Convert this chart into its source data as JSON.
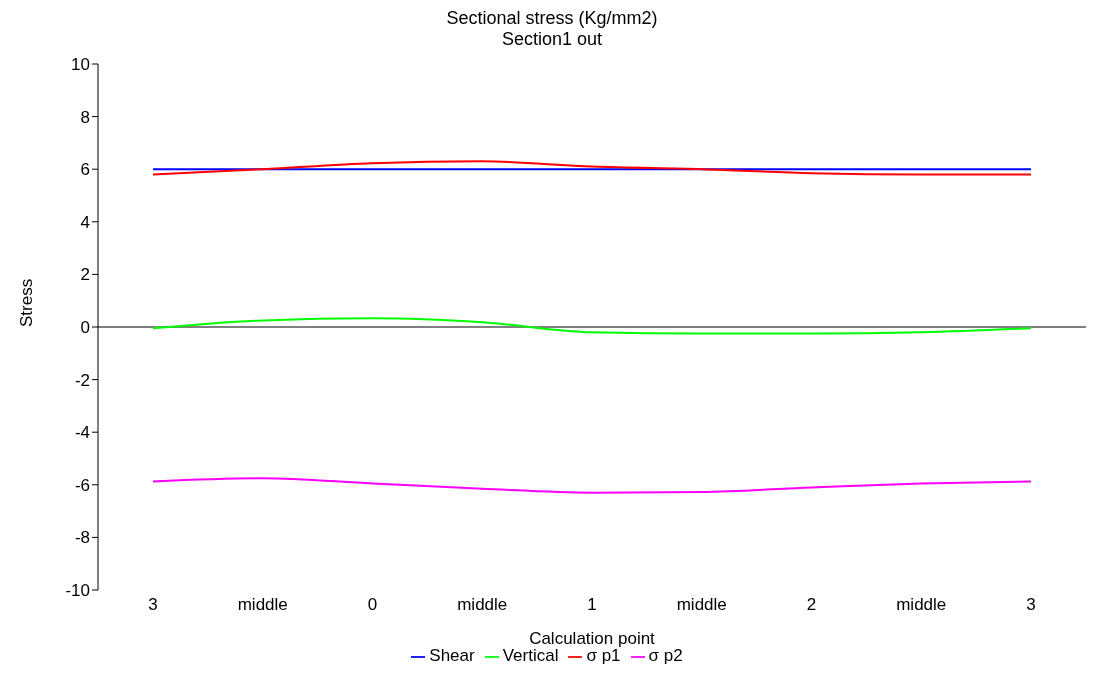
{
  "chart_data": {
    "type": "line",
    "title": "Sectional stress (Kg/mm2)",
    "subtitle": "Section1 out",
    "xlabel": "Calculation point",
    "ylabel": "Stress",
    "categories": [
      "3",
      "middle",
      "0",
      "middle",
      "1",
      "middle",
      "2",
      "middle",
      "3"
    ],
    "series": [
      {
        "name": "Shear",
        "color": "#0000ff",
        "values": [
          6,
          6,
          6,
          6,
          6,
          6,
          6,
          6,
          6
        ]
      },
      {
        "name": "Vertical",
        "color": "#00ff00",
        "values": [
          -0.05,
          0.25,
          0.33,
          0.18,
          -0.2,
          -0.25,
          -0.25,
          -0.2,
          -0.05
        ]
      },
      {
        "name": "σ p1",
        "color": "#ff0000",
        "values": [
          5.8,
          6.0,
          6.23,
          6.3,
          6.1,
          6.0,
          5.85,
          5.8,
          5.8
        ]
      },
      {
        "name": "σ p2",
        "color": "#ff00ff",
        "values": [
          -5.87,
          -5.75,
          -5.95,
          -6.15,
          -6.3,
          -6.27,
          -6.1,
          -5.95,
          -5.87
        ]
      }
    ],
    "ylim": [
      -10,
      10
    ],
    "yticks": [
      -10,
      -8,
      -6,
      -4,
      -2,
      0,
      2,
      4,
      6,
      8,
      10
    ],
    "ref_lines": [
      {
        "axis": "y",
        "value": 0,
        "color": "#000000"
      }
    ],
    "legend": "bottom",
    "marker": "none",
    "line_style": "solid"
  }
}
